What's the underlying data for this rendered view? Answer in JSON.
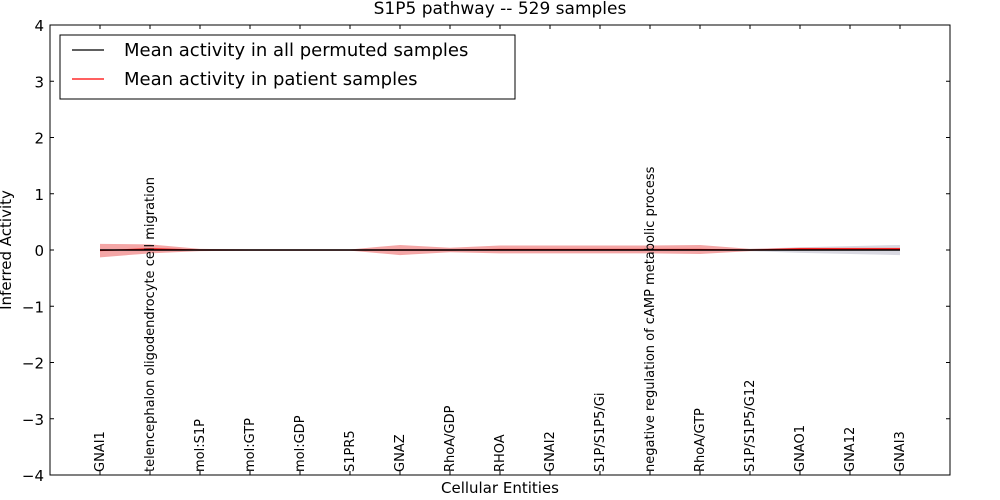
{
  "chart_data": {
    "type": "line",
    "title": "S1P5 pathway -- 529 samples",
    "xlabel": "Cellular Entities",
    "ylabel": "Inferred Activity",
    "ylim": [
      -4,
      4
    ],
    "yticks": [
      -4,
      -3,
      -2,
      -1,
      0,
      1,
      2,
      3,
      4
    ],
    "categories": [
      "GNAI1",
      "telencephalon oligodendrocyte cell migration",
      "mol:S1P",
      "mol:GTP",
      "mol:GDP",
      "S1PR5",
      "GNAZ",
      "RhoA/GDP",
      "RHOA",
      "GNAI2",
      "S1P/S1P5/Gi",
      "negative regulation of cAMP metabolic process",
      "RhoA/GTP",
      "S1P/S1P5/G12",
      "GNAO1",
      "GNA12",
      "GNAI3"
    ],
    "legend_position": "top-left",
    "series": [
      {
        "name": "Mean activity in all permuted samples",
        "color": "#000000",
        "band_color": "#b8b8c8",
        "values": [
          0.0,
          0.0,
          0.0,
          0.0,
          0.0,
          0.0,
          0.0,
          0.0,
          0.0,
          0.0,
          0.0,
          0.0,
          0.0,
          0.0,
          0.0,
          0.0,
          0.0
        ],
        "band": [
          0.02,
          0.02,
          0.01,
          0.01,
          0.01,
          0.01,
          0.02,
          0.02,
          0.02,
          0.02,
          0.02,
          0.02,
          0.02,
          0.02,
          0.05,
          0.07,
          0.09
        ]
      },
      {
        "name": "Mean activity in patient samples",
        "color": "#ff0000",
        "band_color": "#f08080",
        "values": [
          -0.01,
          0.02,
          0.0,
          0.0,
          0.0,
          0.0,
          0.0,
          0.0,
          0.01,
          0.01,
          0.01,
          0.01,
          0.01,
          0.0,
          0.02,
          0.02,
          0.02
        ],
        "band": [
          0.12,
          0.08,
          0.02,
          0.01,
          0.01,
          0.01,
          0.09,
          0.04,
          0.07,
          0.07,
          0.07,
          0.07,
          0.08,
          0.02,
          0.02,
          0.02,
          0.02
        ]
      }
    ]
  }
}
